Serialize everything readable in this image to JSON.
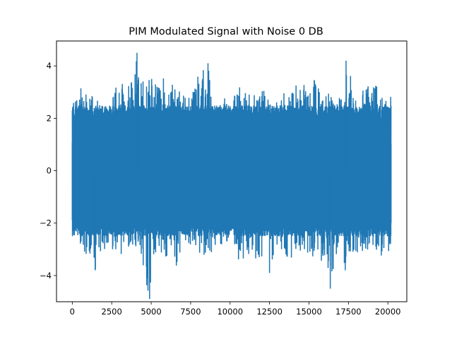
{
  "chart_data": {
    "type": "line",
    "title": "PIM Modulated Signal with Noise 0 DB",
    "xlabel": "",
    "ylabel": "",
    "xlim": [
      -1000,
      21200
    ],
    "ylim": [
      -5.0,
      4.95
    ],
    "x_ticks": [
      0,
      2500,
      5000,
      7500,
      10000,
      12500,
      15000,
      17500,
      20000
    ],
    "x_tick_labels": [
      "0",
      "2500",
      "5000",
      "7500",
      "10000",
      "12500",
      "15000",
      "17500",
      "20000"
    ],
    "y_ticks": [
      -4,
      -2,
      0,
      2,
      4
    ],
    "y_tick_labels": [
      "−4",
      "−2",
      "0",
      "2",
      "4"
    ],
    "grid": false,
    "legend": "none",
    "series": [
      {
        "color": "#1f77b4",
        "n_points": 20200,
        "x_range": [
          0,
          20200
        ],
        "upper_envelope": [
          [
            0,
            2.9
          ],
          [
            400,
            2.7
          ],
          [
            600,
            3.6
          ],
          [
            1000,
            2.8
          ],
          [
            1450,
            3.1
          ],
          [
            1700,
            2.4
          ],
          [
            2000,
            3.0
          ],
          [
            2600,
            3.1
          ],
          [
            2750,
            3.3
          ],
          [
            3200,
            3.7
          ],
          [
            3700,
            3.4
          ],
          [
            4100,
            4.5
          ],
          [
            4400,
            3.6
          ],
          [
            5000,
            3.6
          ],
          [
            5300,
            3.5
          ],
          [
            5700,
            3.7
          ],
          [
            6050,
            3.2
          ],
          [
            6600,
            3.5
          ],
          [
            7000,
            3.0
          ],
          [
            7450,
            2.9
          ],
          [
            8000,
            3.7
          ],
          [
            8600,
            4.1
          ],
          [
            9000,
            2.4
          ],
          [
            9600,
            2.8
          ],
          [
            9900,
            2.6
          ],
          [
            10600,
            3.4
          ],
          [
            11200,
            3.0
          ],
          [
            11500,
            2.9
          ],
          [
            12200,
            3.1
          ],
          [
            12500,
            2.8
          ],
          [
            13100,
            2.7
          ],
          [
            13500,
            3.1
          ],
          [
            13800,
            2.8
          ],
          [
            14300,
            3.6
          ],
          [
            14900,
            3.1
          ],
          [
            15300,
            3.6
          ],
          [
            15900,
            2.7
          ],
          [
            16300,
            3.2
          ],
          [
            16600,
            2.5
          ],
          [
            17200,
            3.2
          ],
          [
            17350,
            4.2
          ],
          [
            17700,
            3.5
          ],
          [
            18000,
            2.8
          ],
          [
            18600,
            3.2
          ],
          [
            19300,
            3.5
          ],
          [
            19600,
            3.0
          ],
          [
            20000,
            3.6
          ],
          [
            20200,
            3.2
          ]
        ],
        "lower_envelope": [
          [
            0,
            -2.0
          ],
          [
            400,
            -2.6
          ],
          [
            700,
            -3.3
          ],
          [
            1050,
            -3.1
          ],
          [
            1450,
            -3.8
          ],
          [
            1900,
            -3.1
          ],
          [
            2400,
            -2.9
          ],
          [
            3000,
            -3.4
          ],
          [
            3500,
            -3.1
          ],
          [
            3800,
            -3.5
          ],
          [
            4150,
            -3.0
          ],
          [
            4350,
            -3.5
          ],
          [
            4900,
            -4.9
          ],
          [
            5200,
            -3.2
          ],
          [
            5950,
            -3.4
          ],
          [
            6350,
            -3.2
          ],
          [
            6550,
            -3.7
          ],
          [
            7000,
            -3.0
          ],
          [
            7600,
            -2.9
          ],
          [
            8000,
            -3.1
          ],
          [
            8600,
            -3.4
          ],
          [
            9000,
            -2.9
          ],
          [
            9600,
            -3.0
          ],
          [
            10100,
            -2.7
          ],
          [
            10600,
            -3.6
          ],
          [
            11100,
            -3.2
          ],
          [
            11600,
            -3.4
          ],
          [
            12150,
            -3.3
          ],
          [
            12500,
            -3.9
          ],
          [
            13000,
            -3.1
          ],
          [
            13600,
            -3.4
          ],
          [
            14000,
            -3.3
          ],
          [
            14500,
            -3.5
          ],
          [
            15150,
            -3.5
          ],
          [
            15500,
            -3.1
          ],
          [
            15700,
            -3.6
          ],
          [
            16100,
            -3.2
          ],
          [
            16350,
            -4.5
          ],
          [
            16800,
            -3.1
          ],
          [
            17200,
            -3.4
          ],
          [
            17300,
            -3.8
          ],
          [
            17600,
            -3.2
          ],
          [
            18100,
            -3.2
          ],
          [
            18500,
            -3.3
          ],
          [
            18900,
            -2.9
          ],
          [
            19300,
            -3.1
          ],
          [
            19700,
            -3.3
          ],
          [
            20000,
            -3.4
          ],
          [
            20200,
            -3.2
          ]
        ],
        "peaks": [
          {
            "x": 4100,
            "y": 4.5
          },
          {
            "x": 8600,
            "y": 4.1
          },
          {
            "x": 17350,
            "y": 4.2
          },
          {
            "x": 4900,
            "y": -4.9
          },
          {
            "x": 16350,
            "y": -4.5
          },
          {
            "x": 12500,
            "y": -3.9
          },
          {
            "x": 1450,
            "y": -3.8
          },
          {
            "x": 17300,
            "y": -3.8
          }
        ]
      }
    ]
  }
}
